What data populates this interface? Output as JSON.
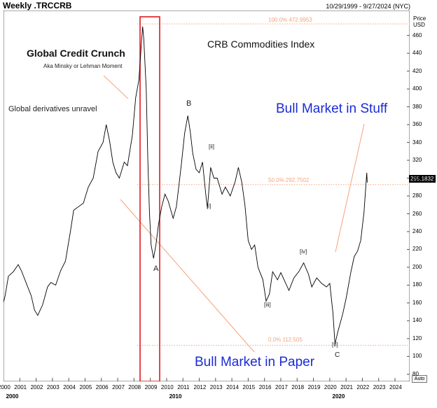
{
  "header": {
    "title": "Weekly .TRCCRB",
    "date_range": "10/29/1999 - 9/27/2024 (NYC)"
  },
  "annotations": {
    "credit_crunch": "Global Credit Crunch",
    "credit_crunch_sub": "Aka Minsky or Lehman Moment",
    "derivatives": "Global derivatives unravel",
    "index_name": "CRB Commodities Index",
    "bull_stuff": "Bull Market in Stuff",
    "bull_paper": "Bull Market in Paper"
  },
  "wave_labels": {
    "A": "A",
    "B": "B",
    "C": "C",
    "i": "[i]",
    "ii": "[ii]",
    "iii": "[iii]",
    "iv": "[iv]",
    "v": "[v]"
  },
  "fib_levels": {
    "f100": "100.0%  472.9953",
    "f50": "50.0%  292.7502",
    "f0": "0.0%  112.505"
  },
  "axis": {
    "price_label": "Price",
    "currency": "USD",
    "last_price": "295.1832",
    "auto_label": "Auto"
  },
  "colors": {
    "series": "#000000",
    "fib": "#f4a47a",
    "trendline": "#f4a47a",
    "highlight_box": "#e0191e",
    "annotation_blue": "#1a2bd6"
  },
  "chart_data": {
    "type": "line",
    "title": "CRB Commodities Index",
    "frequency": "weekly",
    "ylim": [
      72,
      488
    ],
    "xlim": [
      2000,
      2024.9
    ],
    "y_ticks": [
      80,
      100,
      120,
      140,
      160,
      180,
      200,
      220,
      240,
      260,
      280,
      300,
      320,
      340,
      360,
      380,
      400,
      420,
      440,
      460
    ],
    "x_ticks": [
      "2000",
      "2001",
      "2002",
      "2003",
      "2004",
      "2005",
      "2006",
      "2007",
      "2008",
      "2009",
      "2010",
      "2011",
      "2012",
      "2013",
      "2014",
      "2015",
      "2016",
      "2017",
      "2018",
      "2019",
      "2020",
      "2021",
      "2022",
      "2023",
      "2024"
    ],
    "x_ticks_major": [
      "2000",
      "2010",
      "2020"
    ],
    "series": [
      {
        "values": [
          [
            1999.85,
            150
          ],
          [
            2000.1,
            168
          ],
          [
            2000.3,
            190
          ],
          [
            2000.6,
            195
          ],
          [
            2000.9,
            203
          ],
          [
            2001.1,
            196
          ],
          [
            2001.4,
            182
          ],
          [
            2001.7,
            168
          ],
          [
            2001.9,
            152
          ],
          [
            2002.1,
            146
          ],
          [
            2002.4,
            158
          ],
          [
            2002.7,
            178
          ],
          [
            2002.9,
            183
          ],
          [
            2003.2,
            180
          ],
          [
            2003.5,
            196
          ],
          [
            2003.8,
            207
          ],
          [
            2004.1,
            240
          ],
          [
            2004.3,
            264
          ],
          [
            2004.6,
            268
          ],
          [
            2004.9,
            272
          ],
          [
            2005.2,
            290
          ],
          [
            2005.5,
            300
          ],
          [
            2005.8,
            330
          ],
          [
            2006.1,
            340
          ],
          [
            2006.3,
            360
          ],
          [
            2006.5,
            342
          ],
          [
            2006.7,
            318
          ],
          [
            2006.9,
            306
          ],
          [
            2007.1,
            300
          ],
          [
            2007.4,
            318
          ],
          [
            2007.6,
            314
          ],
          [
            2007.9,
            348
          ],
          [
            2008.1,
            390
          ],
          [
            2008.3,
            410
          ],
          [
            2008.45,
            450
          ],
          [
            2008.53,
            470
          ],
          [
            2008.6,
            456
          ],
          [
            2008.75,
            400
          ],
          [
            2008.85,
            320
          ],
          [
            2008.95,
            260
          ],
          [
            2009.05,
            225
          ],
          [
            2009.2,
            210
          ],
          [
            2009.35,
            226
          ],
          [
            2009.5,
            248
          ],
          [
            2009.7,
            268
          ],
          [
            2009.9,
            282
          ],
          [
            2010.1,
            274
          ],
          [
            2010.4,
            255
          ],
          [
            2010.6,
            268
          ],
          [
            2010.9,
            315
          ],
          [
            2011.1,
            350
          ],
          [
            2011.3,
            370
          ],
          [
            2011.45,
            352
          ],
          [
            2011.6,
            328
          ],
          [
            2011.8,
            310
          ],
          [
            2012.0,
            306
          ],
          [
            2012.2,
            318
          ],
          [
            2012.4,
            282
          ],
          [
            2012.5,
            266
          ],
          [
            2012.7,
            312
          ],
          [
            2012.9,
            300
          ],
          [
            2013.1,
            300
          ],
          [
            2013.4,
            282
          ],
          [
            2013.6,
            290
          ],
          [
            2013.9,
            280
          ],
          [
            2014.2,
            296
          ],
          [
            2014.4,
            312
          ],
          [
            2014.6,
            296
          ],
          [
            2014.8,
            270
          ],
          [
            2015.0,
            230
          ],
          [
            2015.2,
            220
          ],
          [
            2015.4,
            225
          ],
          [
            2015.6,
            200
          ],
          [
            2015.9,
            186
          ],
          [
            2016.1,
            162
          ],
          [
            2016.3,
            170
          ],
          [
            2016.5,
            195
          ],
          [
            2016.8,
            186
          ],
          [
            2017.0,
            194
          ],
          [
            2017.3,
            182
          ],
          [
            2017.5,
            174
          ],
          [
            2017.8,
            188
          ],
          [
            2018.1,
            195
          ],
          [
            2018.4,
            205
          ],
          [
            2018.7,
            192
          ],
          [
            2018.9,
            178
          ],
          [
            2019.2,
            188
          ],
          [
            2019.5,
            182
          ],
          [
            2019.8,
            178
          ],
          [
            2020.0,
            182
          ],
          [
            2020.2,
            148
          ],
          [
            2020.32,
            114
          ],
          [
            2020.5,
            128
          ],
          [
            2020.8,
            148
          ],
          [
            2021.0,
            165
          ],
          [
            2021.3,
            195
          ],
          [
            2021.5,
            212
          ],
          [
            2021.7,
            218
          ],
          [
            2021.9,
            230
          ],
          [
            2022.1,
            262
          ],
          [
            2022.2,
            288
          ],
          [
            2022.27,
            306
          ],
          [
            2022.3,
            295
          ]
        ]
      }
    ]
  }
}
